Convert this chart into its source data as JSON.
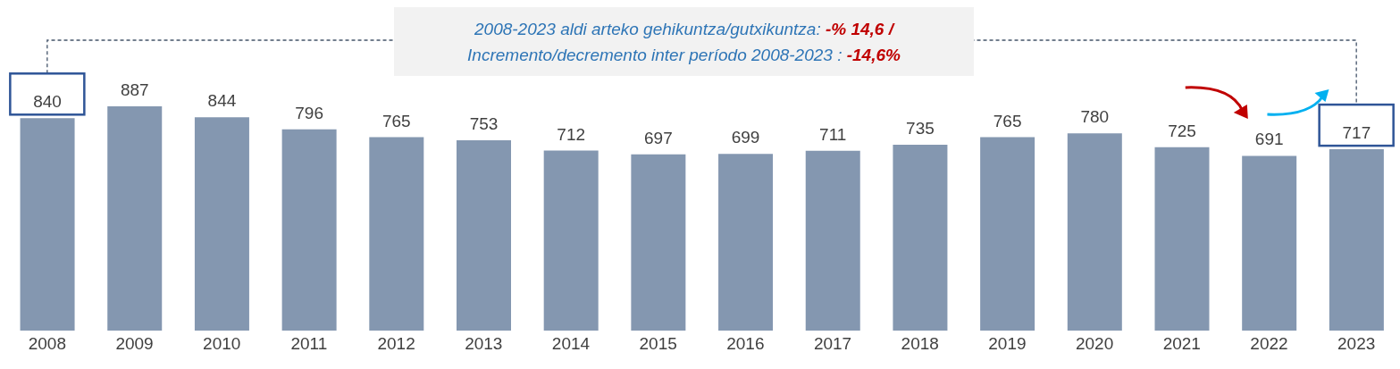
{
  "chart_data": {
    "type": "bar",
    "categories": [
      "2008",
      "2009",
      "2010",
      "2011",
      "2012",
      "2013",
      "2014",
      "2015",
      "2016",
      "2017",
      "2018",
      "2019",
      "2020",
      "2021",
      "2022",
      "2023"
    ],
    "values": [
      840,
      887,
      844,
      796,
      765,
      753,
      712,
      697,
      699,
      711,
      735,
      765,
      780,
      725,
      691,
      717
    ],
    "color": "#8497b0",
    "data_labels": true,
    "tick_labels": "x",
    "annotations": [
      "2008-2023 aldi arteko gehikuntza/gutxikuntza: -% 14,6 /",
      "Incremento/decremento inter período 2008-2023 : -14,6%"
    ]
  }
}
